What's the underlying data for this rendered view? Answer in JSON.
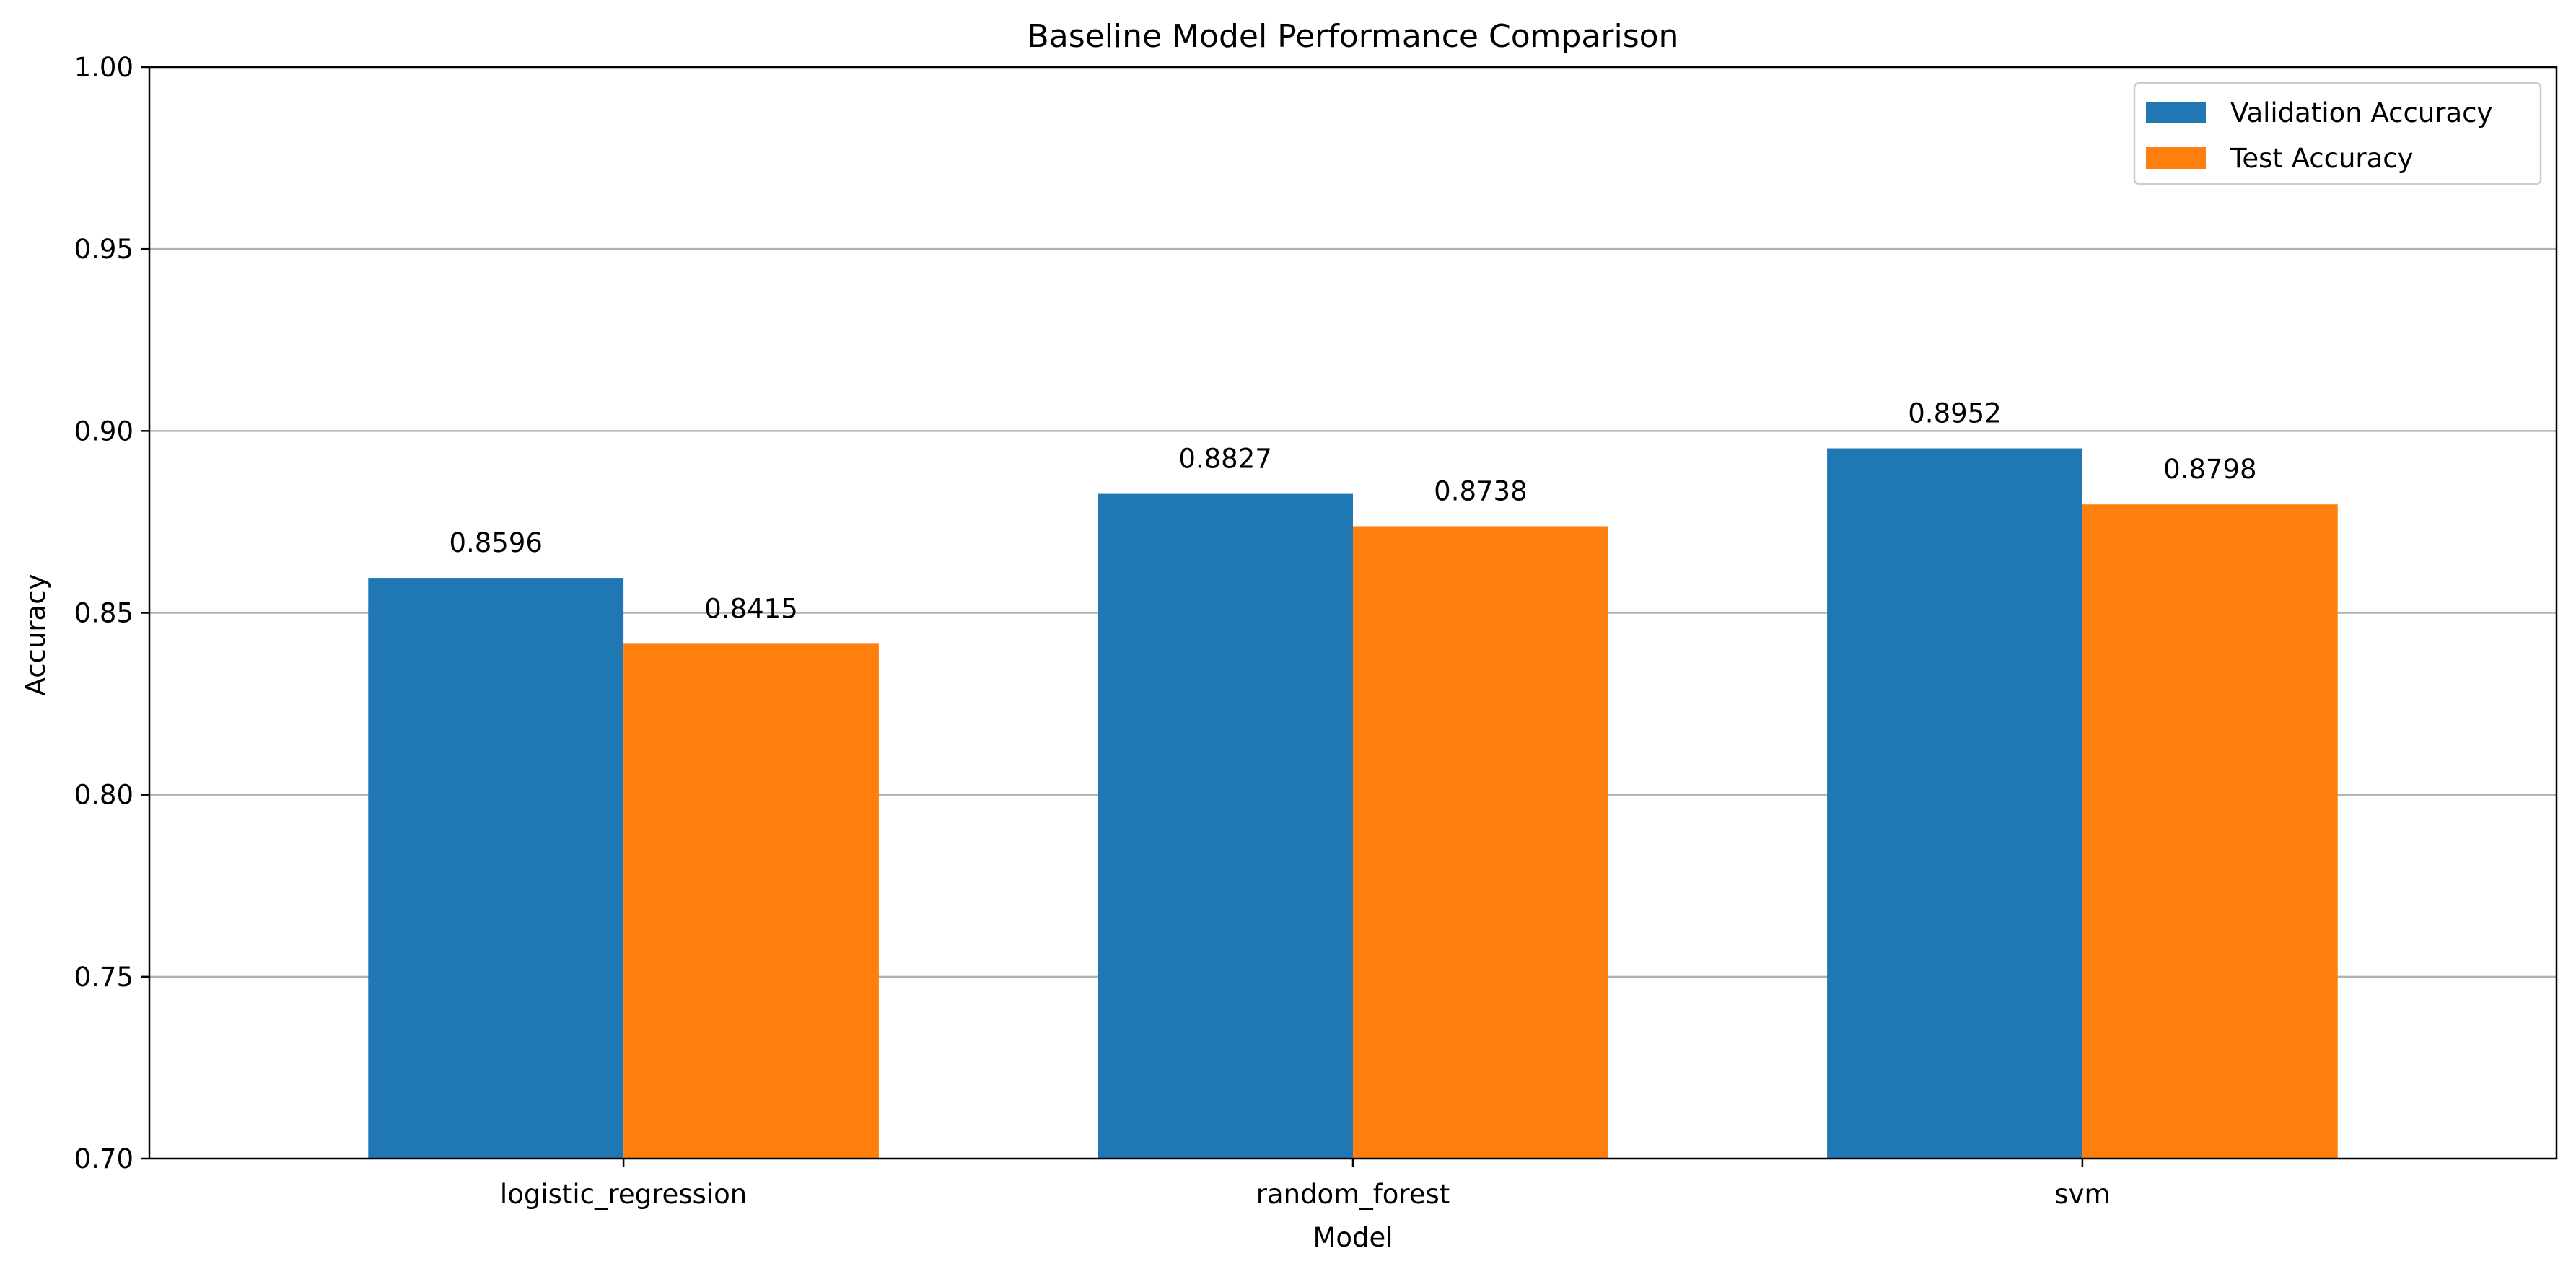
{
  "chart_data": {
    "type": "bar",
    "title": "Baseline Model Performance Comparison",
    "xlabel": "Model",
    "ylabel": "Accuracy",
    "ylim": [
      0.7,
      1.0
    ],
    "yticks": [
      "0.70",
      "0.75",
      "0.80",
      "0.85",
      "0.90",
      "0.95",
      "1.00"
    ],
    "categories": [
      "logistic_regression",
      "random_forest",
      "svm"
    ],
    "series": [
      {
        "name": "Validation Accuracy",
        "color": "#1f77b4",
        "values": [
          0.8596,
          0.8827,
          0.8952
        ],
        "labels": [
          "0.8596",
          "0.8827",
          "0.8952"
        ]
      },
      {
        "name": "Test Accuracy",
        "color": "#ff7f0e",
        "values": [
          0.8415,
          0.8738,
          0.8798
        ],
        "labels": [
          "0.8415",
          "0.8738",
          "0.8798"
        ]
      }
    ],
    "grid": "y",
    "legend": "top-right"
  }
}
